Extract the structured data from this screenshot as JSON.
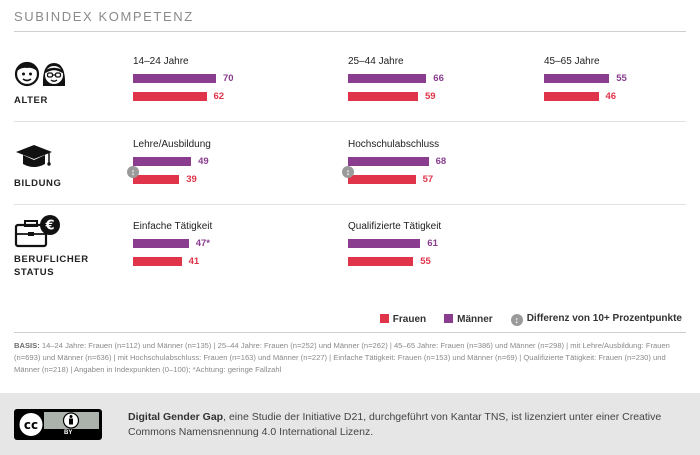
{
  "title": "SUBINDEX KOMPETENZ",
  "colors": {
    "frauen": "#e0344a",
    "maenner": "#8a3d8f",
    "diff": "#9a9a9a"
  },
  "rows": [
    {
      "label_lines": [
        "ALTER"
      ],
      "icon": "faces-icon"
    },
    {
      "label_lines": [
        "BILDUNG"
      ],
      "icon": "graduation-cap-icon"
    },
    {
      "label_lines": [
        "BERUFLICHER",
        "STATUS"
      ],
      "icon": "briefcase-euro-icon"
    }
  ],
  "chart_data": {
    "type": "bar",
    "orientation": "horizontal",
    "series_names": [
      "Männer",
      "Frauen"
    ],
    "groups": [
      {
        "row": "ALTER",
        "category": "14–24 Jahre",
        "maenner": 70,
        "maenner_label": "70",
        "frauen": 62,
        "frauen_label": "62",
        "difference_marker": false
      },
      {
        "row": "ALTER",
        "category": "25–44 Jahre",
        "maenner": 66,
        "maenner_label": "66",
        "frauen": 59,
        "frauen_label": "59",
        "difference_marker": false
      },
      {
        "row": "ALTER",
        "category": "45–65 Jahre",
        "maenner": 55,
        "maenner_label": "55",
        "frauen": 46,
        "frauen_label": "46",
        "difference_marker": false
      },
      {
        "row": "BILDUNG",
        "category": "Lehre/Ausbildung",
        "maenner": 49,
        "maenner_label": "49",
        "frauen": 39,
        "frauen_label": "39",
        "difference_marker": true
      },
      {
        "row": "BILDUNG",
        "category": "Hochschulabschluss",
        "maenner": 68,
        "maenner_label": "68",
        "frauen": 57,
        "frauen_label": "57",
        "difference_marker": true
      },
      {
        "row": "BERUFLICHER STATUS",
        "category": "Einfache Tätigkeit",
        "maenner": 47,
        "maenner_label": "47*",
        "frauen": 41,
        "frauen_label": "41",
        "difference_marker": false
      },
      {
        "row": "BERUFLICHER STATUS",
        "category": "Qualifizierte Tätigkeit",
        "maenner": 61,
        "maenner_label": "61",
        "frauen": 55,
        "frauen_label": "55",
        "difference_marker": false
      }
    ],
    "scale_max": 100
  },
  "legend": {
    "frauen": "Frauen",
    "maenner": "Männer",
    "difference": "Differenz von 10+ Prozentpunkte",
    "difference_symbol": "↕"
  },
  "basis": {
    "label": "BASIS:",
    "text": " 14–24 Jahre: Frauen (n=112) und Männer (n=135) | 25–44 Jahre: Frauen (n=252) und Männer (n=262) | 45–65 Jahre: Frauen (n=386) und Männer (n=298) | mit Lehre/Ausbildung: Frauen (n=693) und Männer (n=636) | mit Hochschulabschluss: Frauen (n=163) und Männer (n=227) | Einfache Tätigkeit: Frauen (n=153) und Männer (n=69) | Qualifizierte Tätigkeit: Frauen (n=230) und Männer (n=218) | Angaben in Indexpunkten (0–100); *Achtung: geringe Fallzahl"
  },
  "footer": {
    "bold": "Digital Gender Gap",
    "text": ", eine Studie der Initiative D21, durchgeführt von Kantar TNS, ist lizenziert unter einer Creative Commons Namensnennung 4.0 International Lizenz.",
    "cc_icon": "cc-by-icon",
    "cc_label": "BY"
  }
}
